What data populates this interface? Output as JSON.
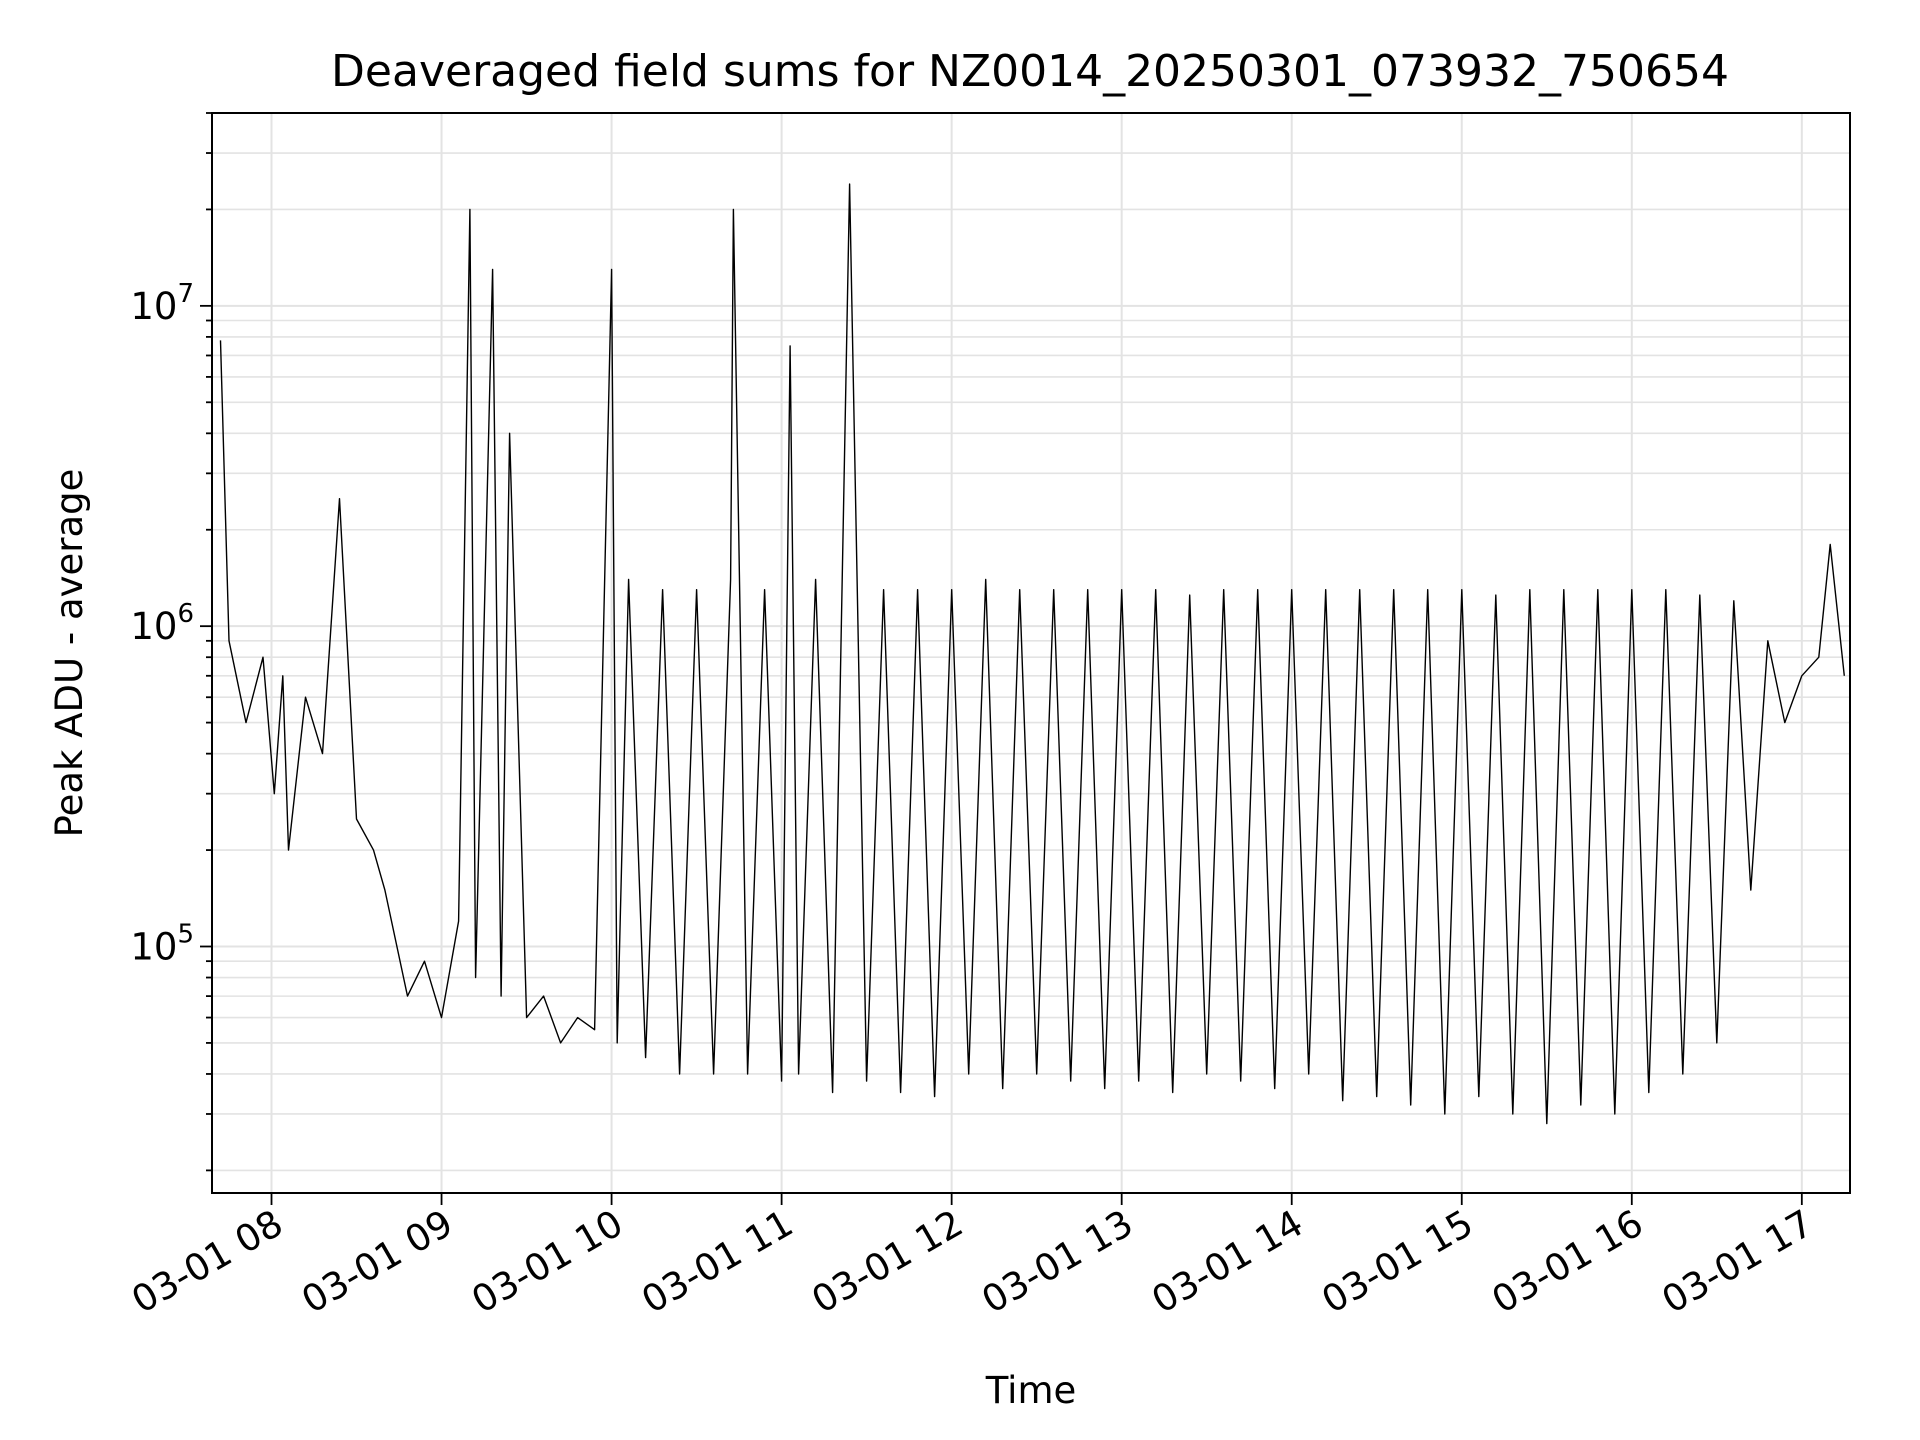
{
  "chart_data": {
    "type": "line",
    "title": "Deaveraged field sums for NZ0014_20250301_073932_750654",
    "xlabel": "Time",
    "ylabel": "Peak ADU - average",
    "yscale": "log",
    "grid": true,
    "legend": "none",
    "line_color": "#000000",
    "x_time_range": [
      "2025-03-01 07:39",
      "2025-03-01 17:17"
    ],
    "ylim": [
      17000,
      40000000
    ],
    "x_ticks": [
      "03-01 08",
      "03-01 09",
      "03-01 10",
      "03-01 11",
      "03-01 12",
      "03-01 13",
      "03-01 14",
      "03-01 15",
      "03-01 16",
      "03-01 17"
    ],
    "y_ticks": [
      {
        "base": "10",
        "exp": "5",
        "value": 100000
      },
      {
        "base": "10",
        "exp": "6",
        "value": 1000000
      },
      {
        "base": "10",
        "exp": "7",
        "value": 10000000
      }
    ],
    "series": [
      {
        "x": [
          "07:42",
          "07:45",
          "07:51",
          "07:57",
          "08:01",
          "08:04",
          "08:06",
          "08:12",
          "08:18",
          "08:24",
          "08:30",
          "08:36",
          "08:40",
          "08:48",
          "08:54",
          "09:00",
          "09:06",
          "09:10",
          "09:12",
          "09:18",
          "09:21",
          "09:24",
          "09:30",
          "09:36",
          "09:42",
          "09:48",
          "09:54",
          "10:00",
          "10:02",
          "10:06",
          "10:12",
          "10:18",
          "10:24",
          "10:30",
          "10:36",
          "10:42",
          "10:43",
          "10:48",
          "10:54",
          "11:00",
          "11:03",
          "11:06",
          "11:12",
          "11:18",
          "11:24",
          "11:30",
          "11:36",
          "11:42",
          "11:48",
          "11:54",
          "12:00",
          "12:06",
          "12:12",
          "12:18",
          "12:24",
          "12:30",
          "12:36",
          "12:42",
          "12:48",
          "12:54",
          "13:00",
          "13:06",
          "13:12",
          "13:18",
          "13:24",
          "13:30",
          "13:36",
          "13:42",
          "13:48",
          "13:54",
          "14:00",
          "14:06",
          "14:12",
          "14:18",
          "14:24",
          "14:30",
          "14:36",
          "14:42",
          "14:48",
          "14:54",
          "15:00",
          "15:06",
          "15:12",
          "15:18",
          "15:24",
          "15:30",
          "15:36",
          "15:42",
          "15:48",
          "15:54",
          "16:00",
          "16:06",
          "16:12",
          "16:18",
          "16:24",
          "16:30",
          "16:36",
          "16:42",
          "16:48",
          "16:54",
          "17:00",
          "17:06",
          "17:10",
          "17:15"
        ],
        "values": [
          7800000,
          900000,
          500000,
          800000,
          300000,
          700000,
          200000,
          600000,
          400000,
          2500000,
          250000,
          200000,
          150000,
          70000,
          90000,
          60000,
          120000,
          20000000,
          80000,
          13000000,
          70000,
          4000000,
          60000,
          70000,
          50000,
          60000,
          55000,
          13000000,
          50000,
          1400000,
          45000,
          1300000,
          40000,
          1300000,
          40000,
          1400000,
          20000000,
          40000,
          1300000,
          38000,
          7500000,
          40000,
          1400000,
          35000,
          24000000,
          38000,
          1300000,
          35000,
          1300000,
          34000,
          1300000,
          40000,
          1400000,
          36000,
          1300000,
          40000,
          1300000,
          38000,
          1300000,
          36000,
          1300000,
          38000,
          1300000,
          35000,
          1250000,
          40000,
          1300000,
          38000,
          1300000,
          36000,
          1300000,
          40000,
          1300000,
          33000,
          1300000,
          34000,
          1300000,
          32000,
          1300000,
          30000,
          1300000,
          34000,
          1250000,
          30000,
          1300000,
          28000,
          1300000,
          32000,
          1300000,
          30000,
          1300000,
          35000,
          1300000,
          40000,
          1250000,
          50000,
          1200000,
          150000,
          900000,
          500000,
          700000,
          800000,
          1800000,
          700000
        ]
      }
    ]
  }
}
